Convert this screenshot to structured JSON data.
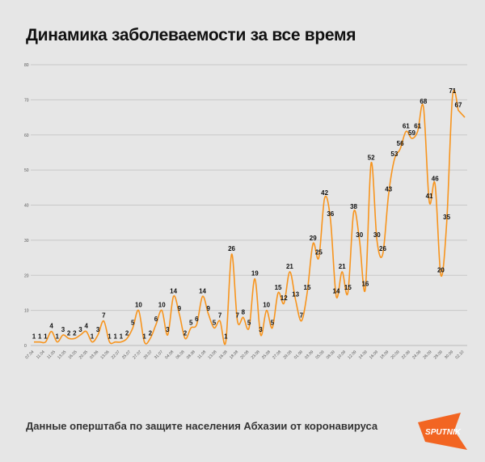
{
  "title": "Динамика заболеваемости за все время",
  "source": "Данные оперштаба по защите населения Абхазии от коронавируса",
  "logo_text": "SPUTNIK",
  "colors": {
    "line": "#f7941d",
    "background": "#e6e6e6",
    "grid": "#c8c8c8",
    "logo": "#f26522"
  },
  "chart_data": {
    "type": "line",
    "title": "Динамика заболеваемости за все время",
    "ylim": [
      0,
      80
    ],
    "yticks": [
      0,
      10,
      20,
      30,
      40,
      50,
      60,
      70,
      80
    ],
    "grid": true,
    "xticks": [
      "07.04",
      "11.04",
      "11.05",
      "13.05",
      "16.05",
      "20.05",
      "03.06",
      "13.06",
      "22.07",
      "25.07",
      "27.07",
      "29.07",
      "31.07",
      "04.08",
      "06.08",
      "08.08",
      "11.08",
      "13.08",
      "16.08",
      "18.08",
      "20.08",
      "23.08",
      "25.08",
      "27.08",
      "29.08",
      "01.09",
      "03.09",
      "05.09",
      "08.09",
      "10.09",
      "12.09",
      "14.09",
      "16.09",
      "18.09",
      "20.09",
      "22.09",
      "24.09",
      "26.09",
      "28.09",
      "30.09",
      "02.10"
    ],
    "values": [
      1,
      1,
      1,
      4,
      1,
      3,
      2,
      2,
      3,
      4,
      1,
      3,
      7,
      1,
      1,
      1,
      2,
      5,
      10,
      1,
      2,
      6,
      10,
      3,
      14,
      9,
      2,
      5,
      6,
      14,
      9,
      5,
      7,
      1,
      26,
      7,
      8,
      5,
      19,
      3,
      10,
      5,
      15,
      12,
      21,
      13,
      7,
      15,
      29,
      25,
      42,
      36,
      14,
      21,
      15,
      38,
      30,
      16,
      52,
      30,
      26,
      43,
      53,
      56,
      61,
      59,
      61,
      68,
      41,
      46,
      20,
      35,
      71,
      67
    ]
  }
}
